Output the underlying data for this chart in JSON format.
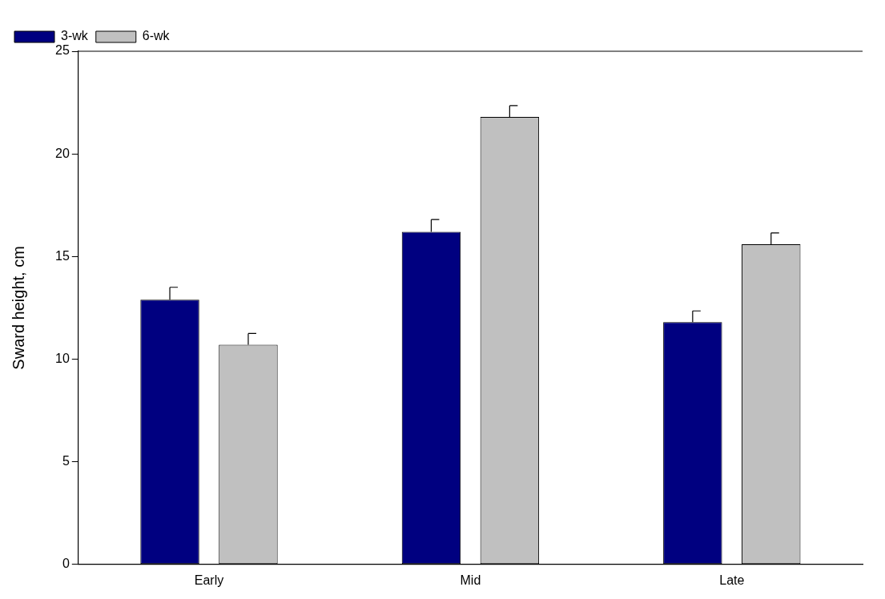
{
  "chart_data": {
    "type": "bar",
    "ylabel": "Sward height, cm",
    "categories": [
      "Early",
      "Mid",
      "Late"
    ],
    "series": [
      {
        "name": "3-wk",
        "color": "#000080",
        "values": [
          12.9,
          16.2,
          11.8
        ],
        "errors": [
          [
            12.9,
            13.5
          ],
          [
            16.2,
            16.8
          ],
          [
            11.8,
            12.35
          ]
        ]
      },
      {
        "name": "6-wk",
        "color": "#c0c0c0",
        "values": [
          10.7,
          21.8,
          15.6
        ],
        "errors": [
          [
            10.7,
            11.25
          ],
          [
            21.8,
            22.35
          ],
          [
            15.6,
            16.15
          ]
        ]
      }
    ],
    "ylim": [
      0,
      25
    ],
    "yticks": [
      0,
      5,
      10,
      15,
      20,
      25
    ],
    "grid": false,
    "legend": "top left"
  }
}
